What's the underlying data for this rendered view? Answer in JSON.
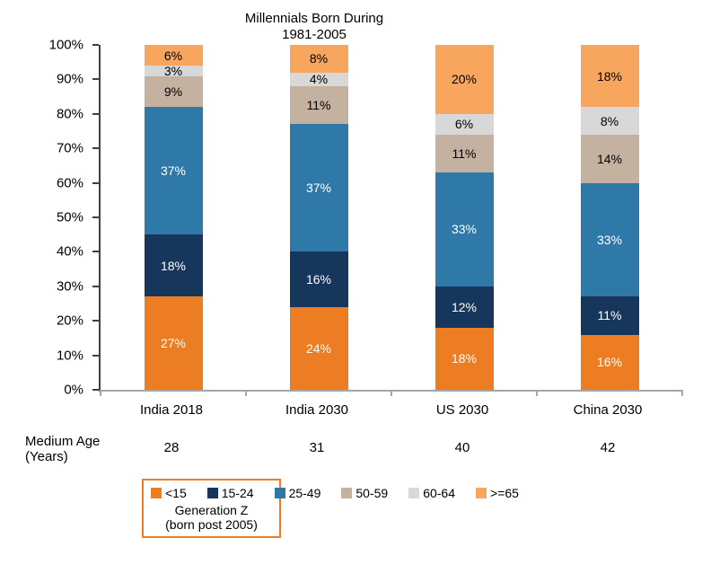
{
  "chart_data": {
    "type": "bar",
    "stacked": true,
    "title": "Millennials Born During 1981-2005",
    "title_lines": [
      "Millennials Born During",
      "1981-2005"
    ],
    "categories": [
      "India 2018",
      "India 2030",
      "US 2030",
      "China 2030"
    ],
    "series": [
      {
        "name": "<15",
        "color": "#ED7D23",
        "label_color": "#FFFFFF",
        "values": [
          27,
          24,
          18,
          16
        ]
      },
      {
        "name": "15-24",
        "color": "#16365C",
        "label_color": "#FFFFFF",
        "values": [
          18,
          16,
          12,
          11
        ]
      },
      {
        "name": "25-49",
        "color": "#2E79A8",
        "label_color": "#FFFFFF",
        "values": [
          37,
          37,
          33,
          33
        ]
      },
      {
        "name": "50-59",
        "color": "#C5B1A0",
        "label_color": "#000000",
        "values": [
          9,
          11,
          11,
          14
        ]
      },
      {
        "name": "60-64",
        "color": "#D8D8D8",
        "label_color": "#000000",
        "values": [
          3,
          4,
          6,
          8
        ]
      },
      {
        "name": ">=65",
        "color": "#F8A55D",
        "label_color": "#000000",
        "values": [
          6,
          8,
          20,
          18
        ]
      }
    ],
    "value_suffix": "%",
    "ylim": [
      0,
      100
    ],
    "yticks": [
      "100%",
      "90%",
      "80%",
      "70%",
      "60%",
      "50%",
      "40%",
      "30%",
      "20%",
      "10%",
      "0%"
    ],
    "grid": false,
    "legend_position": "bottom"
  },
  "medium_age": {
    "label_lines": [
      "Medium Age",
      "(Years)"
    ],
    "values": [
      "28",
      "31",
      "40",
      "42"
    ]
  },
  "legend": {
    "genz_caption_lines": [
      "Generation Z",
      "(born post 2005)"
    ],
    "genz_box_color": "#ED7D23",
    "genz_box_covers": [
      "<15",
      "15-24"
    ]
  }
}
